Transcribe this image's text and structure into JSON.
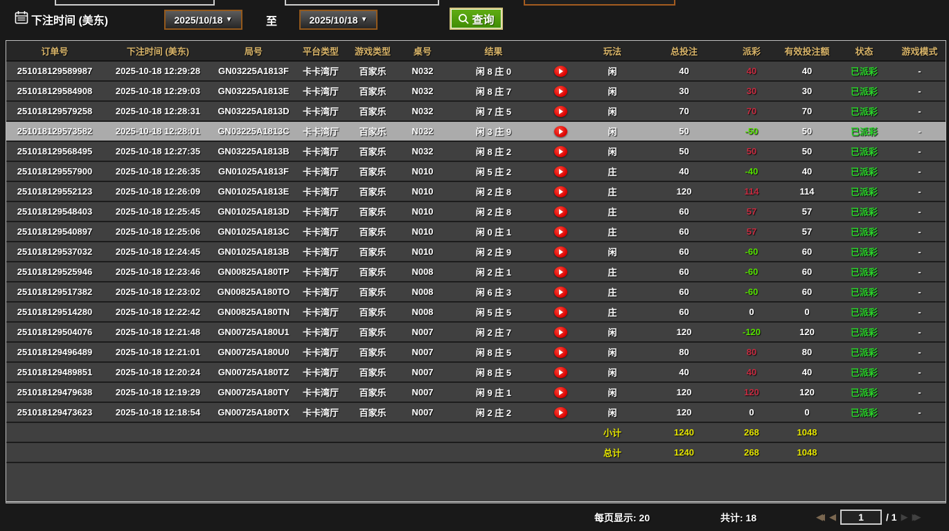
{
  "topbar": {
    "bet_time_label": "下注时间 (美东)",
    "date_from": "2025/10/18",
    "date_to": "2025/10/18",
    "dropdown_caret": "▼",
    "to_label": "至",
    "search_label": "查询"
  },
  "table": {
    "headers": [
      "订单号",
      "下注时间 (美东)",
      "局号",
      "平台类型",
      "游戏类型",
      "桌号",
      "结果",
      "",
      "玩法",
      "总投注",
      "派彩",
      "有效投注额",
      "状态",
      "游戏模式"
    ],
    "rows": [
      {
        "order": "251018129589987",
        "time": "2025-10-18 12:29:28",
        "round": "GN03225A1813F",
        "platform": "卡卡湾厅",
        "game": "百家乐",
        "table": "N032",
        "result": "闲 8 庄 0",
        "play": "闲",
        "bet": "40",
        "payout": "40",
        "payout_color": "red",
        "valid": "40",
        "status": "已派彩",
        "mode": "-",
        "selected": false
      },
      {
        "order": "251018129584908",
        "time": "2025-10-18 12:29:03",
        "round": "GN03225A1813E",
        "platform": "卡卡湾厅",
        "game": "百家乐",
        "table": "N032",
        "result": "闲 8 庄 7",
        "play": "闲",
        "bet": "30",
        "payout": "30",
        "payout_color": "red",
        "valid": "30",
        "status": "已派彩",
        "mode": "-",
        "selected": false
      },
      {
        "order": "251018129579258",
        "time": "2025-10-18 12:28:31",
        "round": "GN03225A1813D",
        "platform": "卡卡湾厅",
        "game": "百家乐",
        "table": "N032",
        "result": "闲 7 庄 5",
        "play": "闲",
        "bet": "70",
        "payout": "70",
        "payout_color": "red",
        "valid": "70",
        "status": "已派彩",
        "mode": "-",
        "selected": false
      },
      {
        "order": "251018129573582",
        "time": "2025-10-18 12:28:01",
        "round": "GN03225A1813C",
        "platform": "卡卡湾厅",
        "game": "百家乐",
        "table": "N032",
        "result": "闲 3 庄 9",
        "play": "闲",
        "bet": "50",
        "payout": "-50",
        "payout_color": "green",
        "valid": "50",
        "status": "已派彩",
        "mode": "-",
        "selected": true
      },
      {
        "order": "251018129568495",
        "time": "2025-10-18 12:27:35",
        "round": "GN03225A1813B",
        "platform": "卡卡湾厅",
        "game": "百家乐",
        "table": "N032",
        "result": "闲 8 庄 2",
        "play": "闲",
        "bet": "50",
        "payout": "50",
        "payout_color": "red",
        "valid": "50",
        "status": "已派彩",
        "mode": "-",
        "selected": false
      },
      {
        "order": "251018129557900",
        "time": "2025-10-18 12:26:35",
        "round": "GN01025A1813F",
        "platform": "卡卡湾厅",
        "game": "百家乐",
        "table": "N010",
        "result": "闲 5 庄 2",
        "play": "庄",
        "bet": "40",
        "payout": "-40",
        "payout_color": "green",
        "valid": "40",
        "status": "已派彩",
        "mode": "-",
        "selected": false
      },
      {
        "order": "251018129552123",
        "time": "2025-10-18 12:26:09",
        "round": "GN01025A1813E",
        "platform": "卡卡湾厅",
        "game": "百家乐",
        "table": "N010",
        "result": "闲 2 庄 8",
        "play": "庄",
        "bet": "120",
        "payout": "114",
        "payout_color": "red",
        "valid": "114",
        "status": "已派彩",
        "mode": "-",
        "selected": false
      },
      {
        "order": "251018129548403",
        "time": "2025-10-18 12:25:45",
        "round": "GN01025A1813D",
        "platform": "卡卡湾厅",
        "game": "百家乐",
        "table": "N010",
        "result": "闲 2 庄 8",
        "play": "庄",
        "bet": "60",
        "payout": "57",
        "payout_color": "red",
        "valid": "57",
        "status": "已派彩",
        "mode": "-",
        "selected": false
      },
      {
        "order": "251018129540897",
        "time": "2025-10-18 12:25:06",
        "round": "GN01025A1813C",
        "platform": "卡卡湾厅",
        "game": "百家乐",
        "table": "N010",
        "result": "闲 0 庄 1",
        "play": "庄",
        "bet": "60",
        "payout": "57",
        "payout_color": "red",
        "valid": "57",
        "status": "已派彩",
        "mode": "-",
        "selected": false
      },
      {
        "order": "251018129537032",
        "time": "2025-10-18 12:24:45",
        "round": "GN01025A1813B",
        "platform": "卡卡湾厅",
        "game": "百家乐",
        "table": "N010",
        "result": "闲 2 庄 9",
        "play": "闲",
        "bet": "60",
        "payout": "-60",
        "payout_color": "green",
        "valid": "60",
        "status": "已派彩",
        "mode": "-",
        "selected": false
      },
      {
        "order": "251018129525946",
        "time": "2025-10-18 12:23:46",
        "round": "GN00825A180TP",
        "platform": "卡卡湾厅",
        "game": "百家乐",
        "table": "N008",
        "result": "闲 2 庄 1",
        "play": "庄",
        "bet": "60",
        "payout": "-60",
        "payout_color": "green",
        "valid": "60",
        "status": "已派彩",
        "mode": "-",
        "selected": false
      },
      {
        "order": "251018129517382",
        "time": "2025-10-18 12:23:02",
        "round": "GN00825A180TO",
        "platform": "卡卡湾厅",
        "game": "百家乐",
        "table": "N008",
        "result": "闲 6 庄 3",
        "play": "庄",
        "bet": "60",
        "payout": "-60",
        "payout_color": "green",
        "valid": "60",
        "status": "已派彩",
        "mode": "-",
        "selected": false
      },
      {
        "order": "251018129514280",
        "time": "2025-10-18 12:22:42",
        "round": "GN00825A180TN",
        "platform": "卡卡湾厅",
        "game": "百家乐",
        "table": "N008",
        "result": "闲 5 庄 5",
        "play": "庄",
        "bet": "60",
        "payout": "0",
        "payout_color": "white",
        "valid": "0",
        "status": "已派彩",
        "mode": "-",
        "selected": false
      },
      {
        "order": "251018129504076",
        "time": "2025-10-18 12:21:48",
        "round": "GN00725A180U1",
        "platform": "卡卡湾厅",
        "game": "百家乐",
        "table": "N007",
        "result": "闲 2 庄 7",
        "play": "闲",
        "bet": "120",
        "payout": "-120",
        "payout_color": "green",
        "valid": "120",
        "status": "已派彩",
        "mode": "-",
        "selected": false
      },
      {
        "order": "251018129496489",
        "time": "2025-10-18 12:21:01",
        "round": "GN00725A180U0",
        "platform": "卡卡湾厅",
        "game": "百家乐",
        "table": "N007",
        "result": "闲 8 庄 5",
        "play": "闲",
        "bet": "80",
        "payout": "80",
        "payout_color": "red",
        "valid": "80",
        "status": "已派彩",
        "mode": "-",
        "selected": false
      },
      {
        "order": "251018129489851",
        "time": "2025-10-18 12:20:24",
        "round": "GN00725A180TZ",
        "platform": "卡卡湾厅",
        "game": "百家乐",
        "table": "N007",
        "result": "闲 8 庄 5",
        "play": "闲",
        "bet": "40",
        "payout": "40",
        "payout_color": "red",
        "valid": "40",
        "status": "已派彩",
        "mode": "-",
        "selected": false
      },
      {
        "order": "251018129479638",
        "time": "2025-10-18 12:19:29",
        "round": "GN00725A180TY",
        "platform": "卡卡湾厅",
        "game": "百家乐",
        "table": "N007",
        "result": "闲 9 庄 1",
        "play": "闲",
        "bet": "120",
        "payout": "120",
        "payout_color": "red",
        "valid": "120",
        "status": "已派彩",
        "mode": "-",
        "selected": false
      },
      {
        "order": "251018129473623",
        "time": "2025-10-18 12:18:54",
        "round": "GN00725A180TX",
        "platform": "卡卡湾厅",
        "game": "百家乐",
        "table": "N007",
        "result": "闲 2 庄 2",
        "play": "闲",
        "bet": "120",
        "payout": "0",
        "payout_color": "white",
        "valid": "0",
        "status": "已派彩",
        "mode": "-",
        "selected": false
      }
    ],
    "subtotal": {
      "label": "小计",
      "bet": "1240",
      "payout": "268",
      "valid": "1048"
    },
    "total": {
      "label": "总计",
      "bet": "1240",
      "payout": "268",
      "valid": "1048"
    }
  },
  "footer": {
    "per_page_label": "每页显示: 20",
    "total_label": "共计: 18",
    "page_value": "1",
    "page_of": "/  1"
  }
}
